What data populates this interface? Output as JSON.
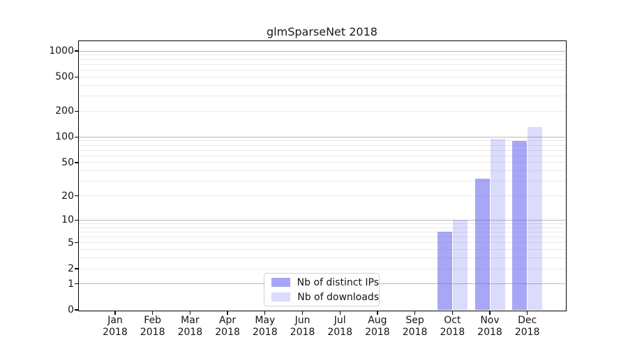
{
  "chart_data": {
    "type": "bar",
    "title": "glmSparseNet 2018",
    "yscale": "log1p",
    "ylim": [
      0,
      1300
    ],
    "grid": true,
    "legend_position": "lower center",
    "categories": [
      "Jan",
      "Feb",
      "Mar",
      "Apr",
      "May",
      "Jun",
      "Jul",
      "Aug",
      "Sep",
      "Oct",
      "Nov",
      "Dec"
    ],
    "x_tick_year": "2018",
    "y_ticks": [
      0,
      1,
      2,
      5,
      10,
      20,
      50,
      100,
      200,
      500,
      1000
    ],
    "y_major_gridlines": [
      1,
      10,
      100,
      1000
    ],
    "y_minor_gridlines": [
      3,
      4,
      6,
      7,
      8,
      9,
      30,
      40,
      60,
      70,
      80,
      90,
      300,
      400,
      600,
      700,
      800,
      900
    ],
    "series": [
      {
        "name": "Nb of distinct IPs",
        "color": "rgba(102,102,240,0.575)",
        "values": [
          0,
          0,
          0,
          0,
          0,
          0,
          0,
          0,
          0,
          7,
          32,
          90
        ]
      },
      {
        "name": "Nb of downloads",
        "color": "rgba(102,102,240,0.235)",
        "values": [
          0,
          0,
          0,
          0,
          0,
          0,
          0,
          0,
          0,
          10,
          95,
          130
        ]
      }
    ]
  },
  "colors": {
    "major_grid": "#b9b9b9",
    "minor_grid": "#e9e9e9",
    "spine": "#000000",
    "text": "#141414",
    "background": "#ffffff"
  }
}
